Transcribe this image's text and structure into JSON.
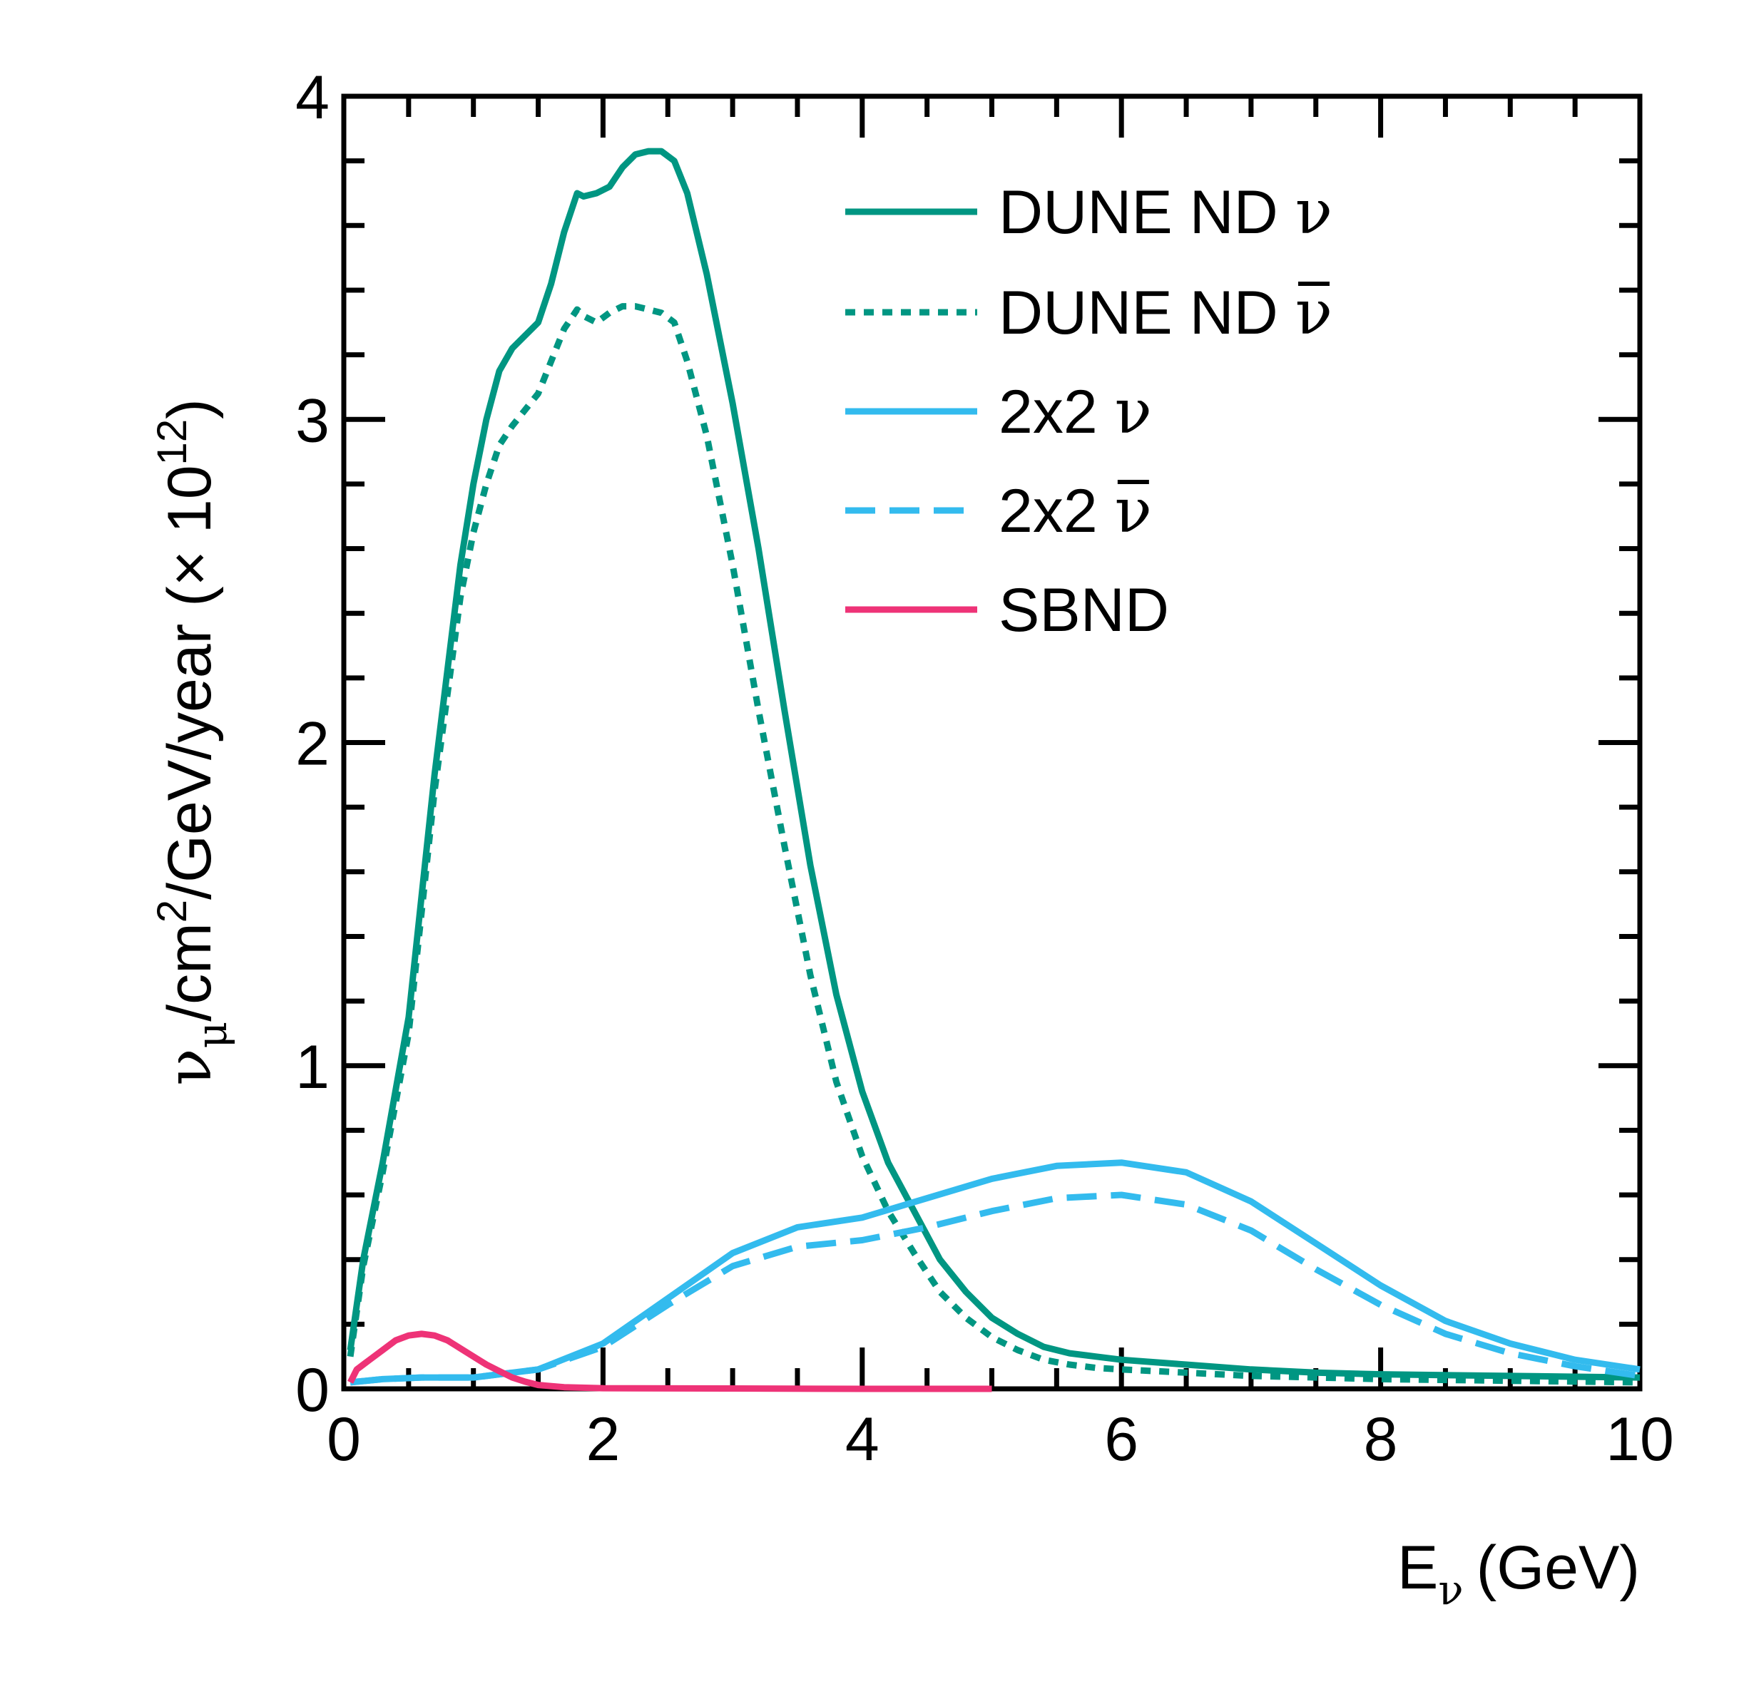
{
  "chart_data": {
    "type": "line",
    "xlabel": {
      "main": "E",
      "sub": "ν",
      "unit": "(GeV)"
    },
    "ylabel": {
      "lead": "ν",
      "lead_sub": "μ",
      "mid": "/cm",
      "mid_sup": "2",
      "rest": "/GeV/year (× 10",
      "rest_sup": "12",
      "tail": ")"
    },
    "xlim": [
      0,
      10
    ],
    "ylim": [
      0,
      4
    ],
    "x_ticks": [
      0,
      2,
      4,
      6,
      8,
      10
    ],
    "x_tick_labels": [
      "0",
      "2",
      "4",
      "6",
      "8",
      "10"
    ],
    "y_ticks": [
      0,
      1,
      2,
      3,
      4
    ],
    "y_tick_labels": [
      "0",
      "1",
      "2",
      "3",
      "4"
    ],
    "grid": false,
    "legend_position": "top-right",
    "series": [
      {
        "name": "DUNE ND ν",
        "legend_main": "DUNE ND ",
        "legend_greek": "ν",
        "legend_bar": false,
        "color": "#009682",
        "style": "solid",
        "x": [
          0.05,
          0.15,
          0.3,
          0.5,
          0.7,
          0.9,
          1.0,
          1.1,
          1.2,
          1.3,
          1.5,
          1.6,
          1.7,
          1.8,
          1.85,
          1.95,
          2.05,
          2.15,
          2.25,
          2.35,
          2.45,
          2.55,
          2.65,
          2.8,
          3.0,
          3.2,
          3.4,
          3.6,
          3.8,
          4.0,
          4.2,
          4.4,
          4.6,
          4.8,
          5.0,
          5.2,
          5.4,
          5.6,
          5.8,
          6.0,
          6.5,
          7.0,
          7.5,
          8.0,
          9.0,
          10.0
        ],
        "values": [
          0.12,
          0.4,
          0.7,
          1.15,
          1.9,
          2.55,
          2.8,
          3.0,
          3.15,
          3.22,
          3.3,
          3.42,
          3.58,
          3.7,
          3.69,
          3.7,
          3.72,
          3.78,
          3.82,
          3.83,
          3.83,
          3.8,
          3.7,
          3.45,
          3.05,
          2.6,
          2.1,
          1.62,
          1.22,
          0.92,
          0.7,
          0.55,
          0.4,
          0.3,
          0.22,
          0.17,
          0.13,
          0.11,
          0.1,
          0.09,
          0.075,
          0.06,
          0.05,
          0.045,
          0.04,
          0.035
        ]
      },
      {
        "name": "DUNE ND ν̄",
        "legend_main": "DUNE ND ",
        "legend_greek": "ν",
        "legend_bar": true,
        "color": "#009682",
        "style": "dotted",
        "x": [
          0.05,
          0.15,
          0.3,
          0.5,
          0.7,
          0.9,
          1.0,
          1.1,
          1.2,
          1.3,
          1.5,
          1.6,
          1.7,
          1.8,
          1.85,
          1.95,
          2.05,
          2.15,
          2.25,
          2.35,
          2.45,
          2.55,
          2.65,
          2.8,
          3.0,
          3.2,
          3.4,
          3.6,
          3.8,
          4.0,
          4.2,
          4.4,
          4.6,
          4.8,
          5.0,
          5.2,
          5.4,
          5.6,
          5.8,
          6.0,
          6.5,
          7.0,
          7.5,
          8.0,
          9.0,
          10.0
        ],
        "values": [
          0.1,
          0.38,
          0.67,
          1.1,
          1.85,
          2.45,
          2.65,
          2.8,
          2.92,
          2.98,
          3.08,
          3.18,
          3.28,
          3.34,
          3.32,
          3.3,
          3.33,
          3.35,
          3.35,
          3.34,
          3.33,
          3.3,
          3.18,
          2.95,
          2.55,
          2.1,
          1.68,
          1.28,
          0.95,
          0.72,
          0.55,
          0.42,
          0.3,
          0.22,
          0.16,
          0.12,
          0.09,
          0.075,
          0.065,
          0.06,
          0.05,
          0.04,
          0.035,
          0.03,
          0.025,
          0.02
        ]
      },
      {
        "name": "2x2 ν",
        "legend_main": "2x2 ",
        "legend_greek": "ν",
        "legend_bar": false,
        "color": "#33bbee",
        "style": "solid",
        "x": [
          0.05,
          0.3,
          0.6,
          1.0,
          1.5,
          2.0,
          2.5,
          3.0,
          3.5,
          4.0,
          4.5,
          5.0,
          5.5,
          6.0,
          6.5,
          7.0,
          7.5,
          8.0,
          8.5,
          9.0,
          9.5,
          10.0
        ],
        "values": [
          0.02,
          0.03,
          0.035,
          0.035,
          0.06,
          0.14,
          0.28,
          0.42,
          0.5,
          0.53,
          0.59,
          0.65,
          0.69,
          0.7,
          0.67,
          0.58,
          0.45,
          0.32,
          0.21,
          0.14,
          0.09,
          0.06
        ]
      },
      {
        "name": "2x2 ν̄",
        "legend_main": "2x2 ",
        "legend_greek": "ν",
        "legend_bar": true,
        "color": "#33bbee",
        "style": "dashed",
        "x": [
          0.05,
          0.3,
          0.6,
          1.0,
          1.5,
          2.0,
          2.5,
          3.0,
          3.5,
          4.0,
          4.5,
          5.0,
          5.5,
          6.0,
          6.5,
          7.0,
          7.5,
          8.0,
          8.5,
          9.0,
          9.5,
          10.0
        ],
        "values": [
          0.02,
          0.03,
          0.035,
          0.035,
          0.06,
          0.13,
          0.26,
          0.38,
          0.44,
          0.46,
          0.5,
          0.55,
          0.59,
          0.6,
          0.57,
          0.49,
          0.37,
          0.26,
          0.17,
          0.11,
          0.07,
          0.04
        ]
      },
      {
        "name": "SBND",
        "legend_main": "SBND",
        "legend_greek": "",
        "legend_bar": false,
        "color": "#ee3377",
        "style": "solid",
        "x": [
          0.05,
          0.1,
          0.2,
          0.3,
          0.4,
          0.5,
          0.6,
          0.7,
          0.8,
          0.9,
          1.0,
          1.1,
          1.2,
          1.3,
          1.4,
          1.5,
          1.7,
          2.0,
          3.0,
          4.0,
          5.0
        ],
        "values": [
          0.02,
          0.06,
          0.09,
          0.12,
          0.15,
          0.165,
          0.17,
          0.165,
          0.15,
          0.125,
          0.1,
          0.075,
          0.055,
          0.035,
          0.022,
          0.012,
          0.005,
          0.002,
          0.001,
          0.0,
          0.0
        ]
      }
    ]
  }
}
